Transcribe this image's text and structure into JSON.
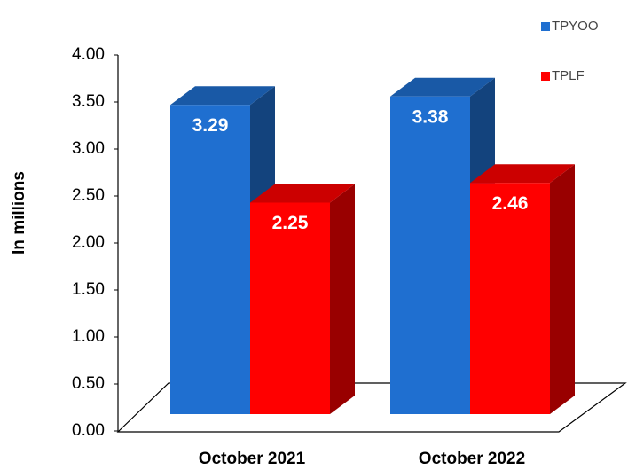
{
  "chart_data": {
    "type": "bar3d",
    "y_label": "In millions",
    "categories": [
      "October 2021",
      "October 2022"
    ],
    "series": [
      {
        "name": "TPYOO",
        "color": "#1f6fd0",
        "values": [
          3.29,
          3.38
        ]
      },
      {
        "name": "TPLF",
        "color": "#ff0000",
        "values": [
          2.25,
          2.46
        ]
      }
    ],
    "ylim": [
      0,
      4
    ],
    "yticks": [
      {
        "value": 0,
        "label": "0.00"
      },
      {
        "value": 0.5,
        "label": "0.50"
      },
      {
        "value": 1,
        "label": "1.00"
      },
      {
        "value": 1.5,
        "label": "1.50"
      },
      {
        "value": 2,
        "label": "2.00"
      },
      {
        "value": 2.5,
        "label": "2.50"
      },
      {
        "value": 3,
        "label": "3.00"
      },
      {
        "value": 3.5,
        "label": "3.50"
      },
      {
        "value": 4,
        "label": "4.00"
      }
    ],
    "legend": "top-right"
  }
}
